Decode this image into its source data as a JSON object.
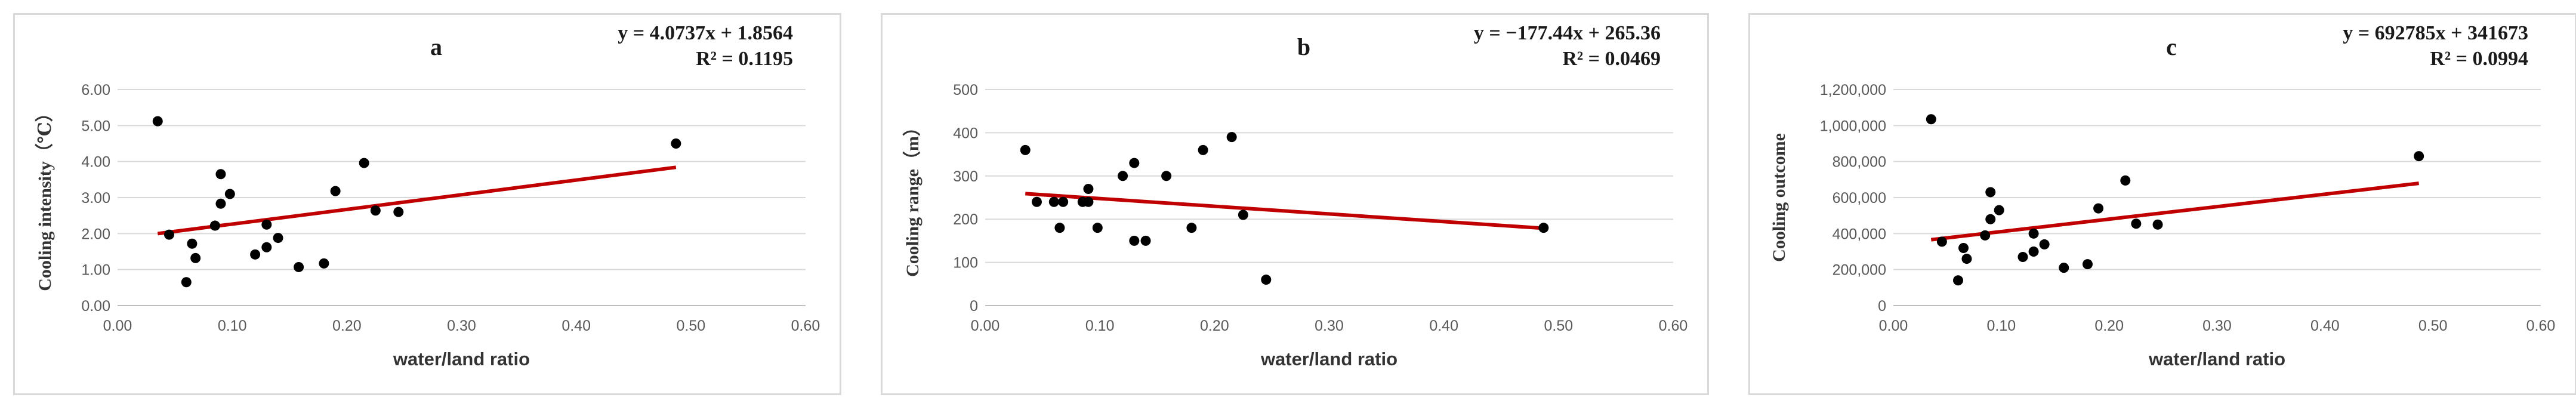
{
  "chart_data": [
    {
      "type": "scatter",
      "panel_label": "a",
      "equation": "y = 4.0737x + 1.8564",
      "r_squared": "R² = 0.1195",
      "xlabel": "water/land ratio",
      "ylabel": "Cooling intensity（℃）",
      "xlim": [
        0,
        0.6
      ],
      "ylim": [
        0,
        6
      ],
      "x_ticks": [
        "0.00",
        "0.10",
        "0.20",
        "0.30",
        "0.40",
        "0.50",
        "0.60"
      ],
      "y_ticks": [
        "0.00",
        "1.00",
        "2.00",
        "3.00",
        "4.00",
        "5.00",
        "6.00"
      ],
      "grid": true,
      "trendline": {
        "slope": 4.0737,
        "intercept": 1.8564,
        "x_range": [
          0.035,
          0.487
        ],
        "color": "#c00000"
      },
      "point_color": "#000000",
      "points": [
        {
          "x": 0.035,
          "y": 5.12
        },
        {
          "x": 0.045,
          "y": 1.97
        },
        {
          "x": 0.06,
          "y": 0.65
        },
        {
          "x": 0.065,
          "y": 1.72
        },
        {
          "x": 0.068,
          "y": 1.32
        },
        {
          "x": 0.085,
          "y": 2.22
        },
        {
          "x": 0.09,
          "y": 3.65
        },
        {
          "x": 0.09,
          "y": 2.83
        },
        {
          "x": 0.098,
          "y": 3.1
        },
        {
          "x": 0.12,
          "y": 1.42
        },
        {
          "x": 0.13,
          "y": 2.25
        },
        {
          "x": 0.13,
          "y": 1.62
        },
        {
          "x": 0.14,
          "y": 1.88
        },
        {
          "x": 0.158,
          "y": 1.07
        },
        {
          "x": 0.18,
          "y": 1.17
        },
        {
          "x": 0.19,
          "y": 3.18
        },
        {
          "x": 0.215,
          "y": 3.96
        },
        {
          "x": 0.225,
          "y": 2.64
        },
        {
          "x": 0.245,
          "y": 2.6
        },
        {
          "x": 0.487,
          "y": 4.5
        }
      ]
    },
    {
      "type": "scatter",
      "panel_label": "b",
      "equation": "y = −177.44x + 265.36",
      "r_squared": "R² = 0.0469",
      "xlabel": "water/land ratio",
      "ylabel": "Cooling range（m）",
      "xlim": [
        0,
        0.6
      ],
      "ylim": [
        0,
        500
      ],
      "x_ticks": [
        "0.00",
        "0.10",
        "0.20",
        "0.30",
        "0.40",
        "0.50",
        "0.60"
      ],
      "y_ticks": [
        "0",
        "100",
        "200",
        "300",
        "400",
        "500"
      ],
      "grid": true,
      "trendline": {
        "slope": -177.44,
        "intercept": 265.36,
        "x_range": [
          0.035,
          0.487
        ],
        "color": "#c00000"
      },
      "point_color": "#000000",
      "points": [
        {
          "x": 0.035,
          "y": 360
        },
        {
          "x": 0.045,
          "y": 240
        },
        {
          "x": 0.06,
          "y": 240
        },
        {
          "x": 0.065,
          "y": 180
        },
        {
          "x": 0.068,
          "y": 240
        },
        {
          "x": 0.085,
          "y": 240
        },
        {
          "x": 0.09,
          "y": 270
        },
        {
          "x": 0.09,
          "y": 240
        },
        {
          "x": 0.098,
          "y": 180
        },
        {
          "x": 0.12,
          "y": 300
        },
        {
          "x": 0.13,
          "y": 330
        },
        {
          "x": 0.13,
          "y": 150
        },
        {
          "x": 0.14,
          "y": 150
        },
        {
          "x": 0.158,
          "y": 300
        },
        {
          "x": 0.18,
          "y": 180
        },
        {
          "x": 0.19,
          "y": 360
        },
        {
          "x": 0.215,
          "y": 390
        },
        {
          "x": 0.225,
          "y": 210
        },
        {
          "x": 0.245,
          "y": 60
        },
        {
          "x": 0.487,
          "y": 180
        }
      ]
    },
    {
      "type": "scatter",
      "panel_label": "c",
      "equation": "y = 692785x + 341673",
      "r_squared": "R² = 0.0994",
      "xlabel": "water/land ratio",
      "ylabel": "Cooling outcome",
      "xlim": [
        0,
        0.6
      ],
      "ylim": [
        0,
        1200000
      ],
      "x_ticks": [
        "0.00",
        "0.10",
        "0.20",
        "0.30",
        "0.40",
        "0.50",
        "0.60"
      ],
      "y_ticks": [
        "0",
        "200,000",
        "400,000",
        "600,000",
        "800,000",
        "1,000,000",
        "1,200,000"
      ],
      "grid": true,
      "trendline": {
        "slope": 692785,
        "intercept": 341673,
        "x_range": [
          0.035,
          0.487
        ],
        "color": "#c00000"
      },
      "point_color": "#000000",
      "points": [
        {
          "x": 0.035,
          "y": 1035000
        },
        {
          "x": 0.045,
          "y": 355000
        },
        {
          "x": 0.06,
          "y": 140000
        },
        {
          "x": 0.065,
          "y": 320000
        },
        {
          "x": 0.068,
          "y": 260000
        },
        {
          "x": 0.085,
          "y": 390000
        },
        {
          "x": 0.09,
          "y": 630000
        },
        {
          "x": 0.09,
          "y": 480000
        },
        {
          "x": 0.098,
          "y": 530000
        },
        {
          "x": 0.12,
          "y": 270000
        },
        {
          "x": 0.13,
          "y": 400000
        },
        {
          "x": 0.13,
          "y": 300000
        },
        {
          "x": 0.14,
          "y": 340000
        },
        {
          "x": 0.158,
          "y": 210000
        },
        {
          "x": 0.18,
          "y": 230000
        },
        {
          "x": 0.19,
          "y": 540000
        },
        {
          "x": 0.215,
          "y": 695000
        },
        {
          "x": 0.225,
          "y": 455000
        },
        {
          "x": 0.245,
          "y": 450000
        },
        {
          "x": 0.487,
          "y": 830000
        }
      ]
    }
  ]
}
